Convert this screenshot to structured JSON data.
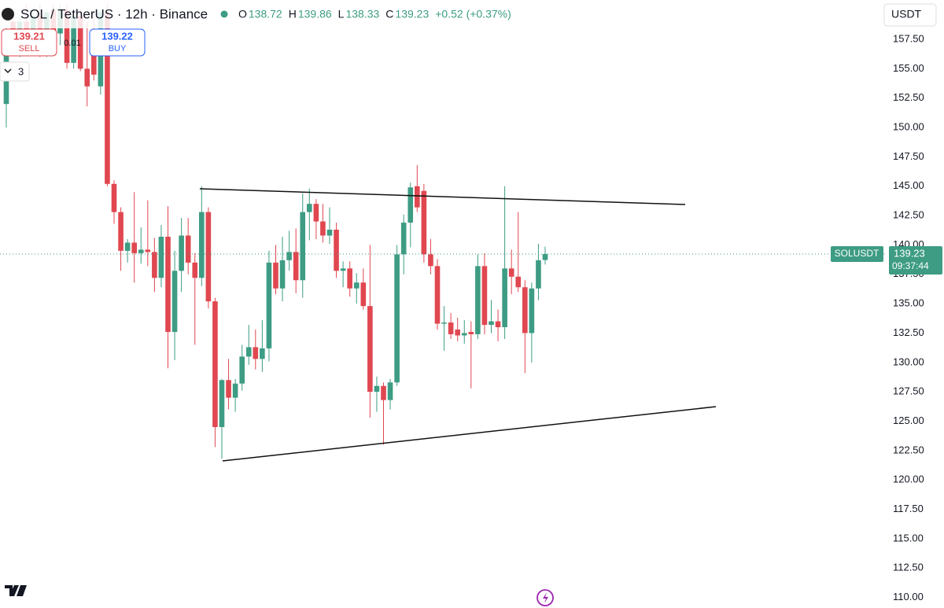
{
  "chart_data": {
    "type": "candlestick",
    "symbol": "SOL / TetherUS · 12h · Binance",
    "ohlc_legend": [
      {
        "key": "O",
        "value": "138.72"
      },
      {
        "key": "H",
        "value": "139.86"
      },
      {
        "key": "L",
        "value": "138.33"
      },
      {
        "key": "C",
        "value": "139.23"
      }
    ],
    "change": "+0.52 (+0.37%)",
    "currency": "USDT",
    "sell": {
      "price": "139.21",
      "label": "SELL"
    },
    "spread": "0.01",
    "buy": {
      "price": "139.22",
      "label": "BUY"
    },
    "indicator_count": "3",
    "price_tag": {
      "name": "SOLUSDT",
      "price": "139.23",
      "countdown": "09:37:44"
    },
    "up_color": "#3d9c83",
    "down_color": "#e04750",
    "open": [
      152,
      159,
      157,
      159,
      157.5,
      159.5,
      156.5,
      160,
      158,
      160,
      155.5,
      159.5,
      155,
      158,
      153.5,
      159.8,
      145.2,
      142.8,
      139.5,
      140.2,
      139.3,
      139.6,
      139.4,
      137.2,
      140.7,
      132.6,
      137.8,
      140.8,
      138.5,
      137.2,
      142.8,
      135.2,
      124.5,
      128.5,
      127,
      128.2,
      130.5,
      131.3,
      130.3,
      131.2,
      138.5,
      136.3,
      138.7,
      139.4,
      137,
      142.8,
      143.5,
      142,
      140.8,
      141.3,
      137.8,
      138,
      136.3,
      136.8,
      134.8,
      127.5,
      128,
      126.8,
      128.3,
      139.2,
      141.9,
      145,
      144.6,
      139.2,
      138.2,
      133.3,
      133.4,
      132.8,
      132.3,
      132.6,
      132.4,
      138.2,
      133.2,
      133.5,
      133,
      138,
      137.3,
      136.4,
      132.5,
      136.3,
      138.72
    ],
    "high": [
      158.5,
      160,
      159.5,
      160.5,
      160,
      160.5,
      160,
      160.5,
      160.5,
      160.5,
      160,
      160,
      159,
      160,
      160,
      160.5,
      145.5,
      143.2,
      140.5,
      144.5,
      141.5,
      143.8,
      140.6,
      141.7,
      143.3,
      139.5,
      142.3,
      142.3,
      139.3,
      145,
      143.2,
      135.5,
      128.6,
      130.3,
      128.6,
      131.5,
      133.2,
      132.8,
      133.6,
      139.5,
      140,
      140.7,
      141.2,
      141.4,
      144.4,
      144.8,
      143.9,
      143.5,
      143.2,
      141.9,
      138.6,
      138.6,
      137.6,
      138,
      140,
      128.8,
      128.3,
      128.6,
      140,
      142.6,
      145.3,
      146.8,
      145.2,
      140.5,
      138.8,
      134.8,
      134.2,
      133.8,
      133.6,
      133.5,
      139.2,
      139.3,
      135.3,
      134.5,
      145,
      139.6,
      142.8,
      137,
      136.8,
      140.1,
      139.86
    ],
    "low": [
      150,
      156.5,
      156,
      157,
      156.5,
      156,
      156,
      157.5,
      157,
      155,
      155,
      154.8,
      151.8,
      154,
      152.8,
      145,
      141.8,
      137.8,
      138.5,
      136.8,
      138.4,
      138.2,
      136,
      136.4,
      129.5,
      130.2,
      136,
      137.5,
      131.5,
      136.5,
      134.6,
      122.8,
      121.8,
      126,
      125.8,
      127.6,
      129.8,
      129.4,
      129.2,
      130.1,
      135.8,
      135.2,
      137.8,
      135.9,
      135.5,
      140.4,
      140.5,
      140.2,
      140.1,
      137.2,
      136.4,
      135.6,
      135,
      134.5,
      125.3,
      125.8,
      123,
      126,
      128,
      137.5,
      139.8,
      142.8,
      138.5,
      137.5,
      132.8,
      131,
      132,
      131.8,
      131.6,
      127.8,
      132,
      132.4,
      132.5,
      131.8,
      132,
      135.8,
      136,
      129.1,
      130,
      135.3,
      138.33
    ],
    "close": [
      158.3,
      157,
      159,
      157.5,
      159.5,
      156.5,
      159.8,
      158,
      160,
      155.5,
      159.5,
      155,
      153.5,
      154.5,
      159.8,
      145.2,
      142.8,
      139.5,
      140.2,
      139.3,
      139.6,
      139.4,
      137.2,
      140.7,
      132.6,
      137.8,
      140.8,
      138.5,
      137.2,
      142.8,
      135.2,
      124.5,
      128.5,
      127,
      128.2,
      130.5,
      131.3,
      130.3,
      131.2,
      138.5,
      136.3,
      138.7,
      139.4,
      137,
      142.8,
      143.5,
      142,
      140.8,
      141.3,
      137.8,
      138,
      136.3,
      136.8,
      134.8,
      127.5,
      128,
      126.8,
      128.3,
      139.2,
      141.9,
      144.9,
      143.2,
      139.2,
      138.2,
      133.3,
      133.4,
      132.4,
      132.3,
      132.5,
      132.4,
      138.2,
      133.2,
      133.5,
      133,
      138,
      137.3,
      136.4,
      132.5,
      136.3,
      138.7,
      139.23
    ],
    "ylim": [
      109.1,
      160.85
    ],
    "yticks": [
      {
        "value": 157.5,
        "label": "157.50"
      },
      {
        "value": 155,
        "label": "155.00"
      },
      {
        "value": 152.5,
        "label": "152.50"
      },
      {
        "value": 150,
        "label": "150.00"
      },
      {
        "value": 147.5,
        "label": "147.50"
      },
      {
        "value": 145,
        "label": "145.00"
      },
      {
        "value": 142.5,
        "label": "142.50"
      },
      {
        "value": 140,
        "label": "140.00"
      },
      {
        "value": 137.5,
        "label": "137.50"
      },
      {
        "value": 135,
        "label": "135.00"
      },
      {
        "value": 132.5,
        "label": "132.50"
      },
      {
        "value": 130,
        "label": "130.00"
      },
      {
        "value": 127.5,
        "label": "127.50"
      },
      {
        "value": 125,
        "label": "125.00"
      },
      {
        "value": 122.5,
        "label": "122.50"
      },
      {
        "value": 120,
        "label": "120.00"
      },
      {
        "value": 117.5,
        "label": "117.50"
      },
      {
        "value": 115,
        "label": "115.00"
      },
      {
        "value": 112.5,
        "label": "112.50"
      },
      {
        "value": 110,
        "label": "110.00"
      }
    ],
    "grid": false
  }
}
